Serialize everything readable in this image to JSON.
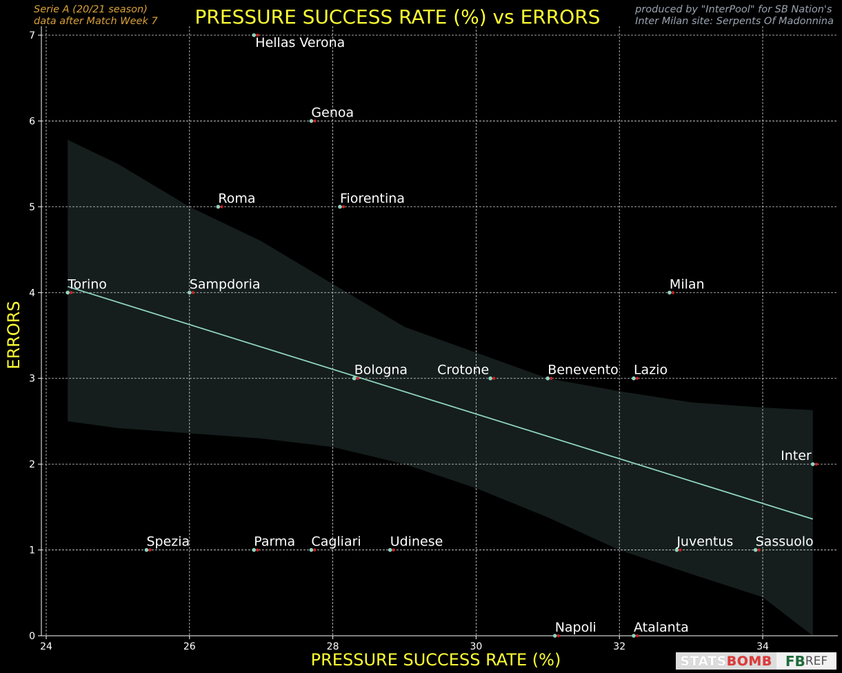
{
  "header": {
    "title": "PRESSURE SUCCESS RATE (%) vs ERRORS",
    "season_line1": "Serie A  (20/21 season)",
    "season_line2": "data after Match Week 7",
    "credit_line1": "produced by \"InterPool\" for SB Nation's",
    "credit_line2": "Inter Milan site: Serpents Of Madonnina"
  },
  "logos": {
    "statsbomb_a": "STATS",
    "statsbomb_b": "BOMB",
    "fbref_a": "FB",
    "fbref_b": "REF"
  },
  "colors": {
    "background": "#000000",
    "title": "#ffff33",
    "point": "#8fd3c2",
    "point_marker": "#cc2222",
    "fit_line": "#8fd3c2",
    "confidence_band": "#151e1c"
  },
  "chart_data": {
    "type": "scatter",
    "title": "PRESSURE SUCCESS RATE (%) vs ERRORS",
    "xlabel": "PRESSURE SUCCESS RATE (%)",
    "ylabel": "ERRORS",
    "xlim": [
      23.9,
      35.3
    ],
    "ylim": [
      0,
      7.1
    ],
    "xticks": [
      "24",
      "26",
      "28",
      "30",
      "32",
      "34"
    ],
    "yticks": [
      "0",
      "1",
      "2",
      "3",
      "4",
      "5",
      "6",
      "7"
    ],
    "grid": true,
    "points": [
      {
        "team": "Hellas Verona",
        "x": 26.9,
        "y": 7
      },
      {
        "team": "Genoa",
        "x": 27.7,
        "y": 6
      },
      {
        "team": "Roma",
        "x": 26.4,
        "y": 5
      },
      {
        "team": "Fiorentina",
        "x": 28.1,
        "y": 5
      },
      {
        "team": "Torino",
        "x": 24.3,
        "y": 4
      },
      {
        "team": "Sampdoria",
        "x": 26.0,
        "y": 4
      },
      {
        "team": "Milan",
        "x": 32.7,
        "y": 4
      },
      {
        "team": "Bologna",
        "x": 28.3,
        "y": 3
      },
      {
        "team": "Crotone",
        "x": 30.2,
        "y": 3
      },
      {
        "team": "Benevento",
        "x": 31.0,
        "y": 3
      },
      {
        "team": "Lazio",
        "x": 32.2,
        "y": 3
      },
      {
        "team": "Inter",
        "x": 34.7,
        "y": 2
      },
      {
        "team": "Spezia",
        "x": 25.4,
        "y": 1
      },
      {
        "team": "Parma",
        "x": 26.9,
        "y": 1
      },
      {
        "team": "Cagliari",
        "x": 27.7,
        "y": 1
      },
      {
        "team": "Udinese",
        "x": 28.8,
        "y": 1
      },
      {
        "team": "Juventus",
        "x": 32.8,
        "y": 1
      },
      {
        "team": "Sassuolo",
        "x": 33.9,
        "y": 1
      },
      {
        "team": "Napoli",
        "x": 31.1,
        "y": 0
      },
      {
        "team": "Atalanta",
        "x": 32.2,
        "y": 0
      }
    ],
    "regression": {
      "x": [
        24.3,
        34.7
      ],
      "y": [
        4.07,
        1.36
      ]
    },
    "confidence_band": {
      "x": [
        24.3,
        25.0,
        26.0,
        27.0,
        28.0,
        29.0,
        30.0,
        31.0,
        32.0,
        33.0,
        34.0,
        34.7
      ],
      "upper": [
        5.78,
        5.5,
        5.0,
        4.6,
        4.1,
        3.6,
        3.3,
        3.0,
        2.85,
        2.72,
        2.66,
        2.63
      ],
      "lower": [
        2.5,
        2.42,
        2.36,
        2.3,
        2.2,
        2.0,
        1.72,
        1.38,
        1.0,
        0.72,
        0.45,
        0.0
      ]
    }
  }
}
